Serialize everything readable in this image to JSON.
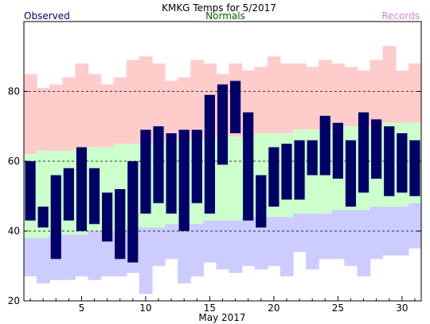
{
  "colors": {
    "record_band": "#ffcccc",
    "normal_band": "#ccffcc",
    "record_low_band": "#ccccff",
    "observed_bar": "#000066",
    "observed_label": "#000066",
    "normals_label": "#006600",
    "records_label": "#cc88cc"
  },
  "chart_data": {
    "type": "bar",
    "title": "KMKG Temps for 5/2017",
    "legend": {
      "observed": "Observed",
      "normals": "Normals",
      "records": "Records"
    },
    "xlabel": "May 2017",
    "ylabel": "",
    "x": [
      1,
      2,
      3,
      4,
      5,
      6,
      7,
      8,
      9,
      10,
      11,
      12,
      13,
      14,
      15,
      16,
      17,
      18,
      19,
      20,
      21,
      22,
      23,
      24,
      25,
      26,
      27,
      28,
      29,
      30,
      31
    ],
    "xlim": [
      0.5,
      31.5
    ],
    "xticks": [
      5,
      10,
      15,
      20,
      25,
      30
    ],
    "ylim": [
      20,
      100
    ],
    "yticks": [
      20,
      40,
      60,
      80
    ],
    "gridlines_y": [
      40,
      60,
      80
    ],
    "series": [
      {
        "name": "Records",
        "kind": "record_high",
        "values": [
          85,
          81,
          82,
          84,
          88,
          85,
          82,
          84,
          89,
          90,
          88,
          83,
          84,
          89,
          88,
          85,
          88,
          86,
          87,
          90,
          88,
          88,
          87,
          89,
          88,
          87,
          86,
          89,
          93,
          86,
          88
        ]
      },
      {
        "name": "Normals",
        "kind": "normal_high",
        "values": [
          62,
          63,
          63,
          63,
          64,
          64,
          64,
          65,
          65,
          65,
          65,
          66,
          66,
          66,
          66,
          67,
          67,
          67,
          68,
          68,
          68,
          69,
          69,
          69,
          69,
          70,
          70,
          70,
          71,
          71,
          71
        ]
      },
      {
        "name": "Normals",
        "kind": "normal_low",
        "values": [
          38,
          38,
          39,
          39,
          39,
          40,
          40,
          40,
          41,
          41,
          41,
          42,
          42,
          42,
          43,
          43,
          43,
          44,
          44,
          44,
          44,
          45,
          45,
          45,
          46,
          46,
          46,
          47,
          47,
          47,
          48
        ]
      },
      {
        "name": "Records",
        "kind": "record_low",
        "values": [
          27,
          25,
          26,
          26,
          27,
          26,
          27,
          27,
          28,
          22,
          30,
          32,
          25,
          27,
          31,
          29,
          28,
          30,
          29,
          30,
          27,
          34,
          29,
          32,
          32,
          30,
          27,
          32,
          33,
          33,
          35
        ]
      },
      {
        "name": "Observed",
        "kind": "observed_high",
        "values": [
          60,
          47,
          56,
          58,
          64,
          58,
          51,
          52,
          60,
          69,
          70,
          68,
          69,
          69,
          79,
          82,
          83,
          74,
          56,
          64,
          65,
          66,
          66,
          73,
          71,
          66,
          74,
          72,
          70,
          68,
          66
        ]
      },
      {
        "name": "Observed",
        "kind": "observed_low",
        "values": [
          43,
          41,
          32,
          43,
          40,
          42,
          37,
          32,
          31,
          45,
          48,
          45,
          40,
          48,
          45,
          59,
          68,
          43,
          41,
          47,
          49,
          49,
          56,
          56,
          55,
          47,
          51,
          55,
          50,
          51,
          50
        ]
      }
    ]
  }
}
